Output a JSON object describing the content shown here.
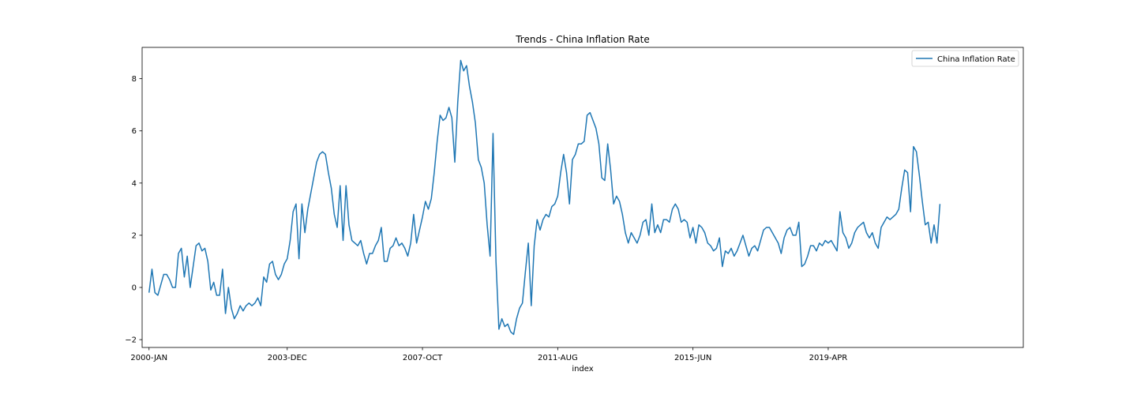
{
  "chart_data": {
    "type": "line",
    "title": "Trends - China Inflation Rate",
    "xlabel": "index",
    "ylabel": "",
    "ylim": [
      -2.3,
      9.2
    ],
    "y_ticks": [
      -2,
      0,
      2,
      4,
      6,
      8
    ],
    "x_ticks": [
      {
        "label": "2000-JAN",
        "index": 0
      },
      {
        "label": "2003-DEC",
        "index": 47
      },
      {
        "label": "2007-OCT",
        "index": 93
      },
      {
        "label": "2011-AUG",
        "index": 139
      },
      {
        "label": "2015-JUN",
        "index": 185
      },
      {
        "label": "2019-APR",
        "index": 231
      }
    ],
    "legend": {
      "position": "top-right",
      "entries": [
        "China Inflation Rate"
      ]
    },
    "grid": false,
    "colors": {
      "series": "#1f77b4"
    },
    "series": [
      {
        "name": "China Inflation Rate",
        "values": [
          -0.2,
          0.7,
          -0.2,
          -0.3,
          0.1,
          0.5,
          0.5,
          0.3,
          0.0,
          0.0,
          1.3,
          1.5,
          0.4,
          1.2,
          0.0,
          0.8,
          1.6,
          1.7,
          1.4,
          1.5,
          1.0,
          -0.1,
          0.2,
          -0.3,
          -0.3,
          0.7,
          -1.0,
          0.0,
          -0.8,
          -1.2,
          -1.0,
          -0.7,
          -0.9,
          -0.7,
          -0.6,
          -0.7,
          -0.6,
          -0.4,
          -0.7,
          0.4,
          0.2,
          0.9,
          1.0,
          0.5,
          0.3,
          0.5,
          0.9,
          1.1,
          1.8,
          2.9,
          3.2,
          1.1,
          3.2,
          2.1,
          3.0,
          3.6,
          4.2,
          4.8,
          5.1,
          5.2,
          5.1,
          4.4,
          3.8,
          2.8,
          2.3,
          3.9,
          1.8,
          3.9,
          2.4,
          1.8,
          1.7,
          1.6,
          1.8,
          1.3,
          0.9,
          1.3,
          1.3,
          1.6,
          1.8,
          2.3,
          1.0,
          1.0,
          1.5,
          1.6,
          1.9,
          1.6,
          1.7,
          1.5,
          1.2,
          1.7,
          2.8,
          1.7,
          2.2,
          2.7,
          3.3,
          3.0,
          3.4,
          4.4,
          5.6,
          6.6,
          6.4,
          6.5,
          6.9,
          6.5,
          4.8,
          7.1,
          8.7,
          8.3,
          8.5,
          7.7,
          7.1,
          6.3,
          4.9,
          4.6,
          4.0,
          2.4,
          1.2,
          5.9,
          1.0,
          -1.6,
          -1.2,
          -1.5,
          -1.4,
          -1.7,
          -1.8,
          -1.2,
          -0.8,
          -0.6,
          0.6,
          1.7,
          -0.7,
          1.6,
          2.6,
          2.2,
          2.6,
          2.8,
          2.7,
          3.1,
          3.2,
          3.5,
          4.4,
          5.1,
          4.4,
          3.2,
          4.9,
          5.1,
          5.5,
          5.5,
          5.6,
          6.6,
          6.7,
          6.4,
          6.1,
          5.5,
          4.2,
          4.1,
          5.5,
          4.5,
          3.2,
          3.5,
          3.3,
          2.8,
          2.1,
          1.7,
          2.1,
          1.9,
          1.7,
          2.0,
          2.5,
          2.6,
          2.0,
          3.2,
          2.1,
          2.4,
          2.1,
          2.6,
          2.6,
          2.5,
          3.0,
          3.2,
          3.0,
          2.5,
          2.6,
          2.5,
          1.9,
          2.3,
          1.7,
          2.4,
          2.3,
          2.1,
          1.7,
          1.6,
          1.4,
          1.5,
          1.9,
          0.8,
          1.4,
          1.3,
          1.5,
          1.2,
          1.4,
          1.7,
          2.0,
          1.6,
          1.2,
          1.5,
          1.6,
          1.4,
          1.8,
          2.2,
          2.3,
          2.3,
          2.1,
          1.9,
          1.7,
          1.3,
          1.9,
          2.2,
          2.3,
          2.0,
          2.0,
          2.5,
          0.8,
          0.9,
          1.2,
          1.6,
          1.6,
          1.4,
          1.7,
          1.6,
          1.8,
          1.7,
          1.8,
          1.6,
          1.4,
          2.9,
          2.1,
          1.9,
          1.5,
          1.7,
          2.1,
          2.3,
          2.4,
          2.5,
          2.1,
          1.9,
          2.1,
          1.7,
          1.5,
          2.3,
          2.5,
          2.7,
          2.6,
          2.7,
          2.8,
          3.0,
          3.8,
          4.5,
          4.4,
          2.9,
          5.4,
          5.2,
          4.3,
          3.3,
          2.4,
          2.5,
          1.7,
          2.4,
          1.7,
          3.2
        ]
      }
    ]
  }
}
